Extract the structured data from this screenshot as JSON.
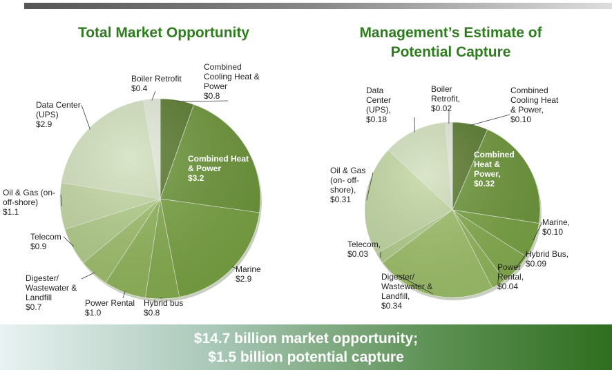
{
  "chart_data": [
    {
      "type": "pie",
      "title": "Total Market Opportunity",
      "categories": [
        "Combined Cooling Heat & Power",
        "Combined Heat & Power",
        "Marine",
        "Hybrid bus",
        "Power Rental",
        "Digester/ Wastewater & Landfill",
        "Telecom",
        "Oil & Gas (on- off-shore)",
        "Data Center (UPS)",
        "Boiler Retrofit"
      ],
      "values": [
        0.8,
        3.2,
        2.9,
        0.8,
        1.0,
        0.7,
        0.9,
        1.1,
        2.9,
        0.4
      ],
      "value_labels": [
        "$0.8",
        "$3.2",
        "$2.9",
        "$0.8",
        "$1.0",
        "$0.7",
        "$0.9",
        "$1.1",
        "$2.9",
        "$0.4"
      ],
      "colors": [
        "#5b7b30",
        "#6e973c",
        "#7aa345",
        "#86ad50",
        "#92b65c",
        "#a0c06d",
        "#b2cd8a",
        "#c2d7a3",
        "#d2e0bd",
        "#e2e9d8"
      ]
    },
    {
      "type": "pie",
      "title": "Management’s Estimate of Potential Capture",
      "categories": [
        "Combined Cooling Heat & Power,",
        "Combined Heat & Power,",
        "Marine,",
        "Hybrid Bus,",
        "Power Rental,",
        "Digester/ Wastewater & Landfill,",
        "Telecom,",
        "Oil & Gas (on- off- shore),",
        "Data Center (UPS),",
        "Boiler Retrofit,"
      ],
      "values": [
        0.1,
        0.32,
        0.1,
        0.09,
        0.04,
        0.34,
        0.03,
        0.31,
        0.18,
        0.02
      ],
      "value_labels": [
        "$0.10",
        "$0.32",
        "$0.10",
        "$0.09",
        "$0.04",
        "$0.34",
        "$0.03",
        "$0.31",
        "$0.18",
        "$0.02"
      ],
      "colors": [
        "#5b7b30",
        "#6e973c",
        "#7aa345",
        "#86ad50",
        "#92b65c",
        "#9fc06a",
        "#b2cd8a",
        "#c2d7a3",
        "#d2e0bd",
        "#e2e9d8"
      ]
    }
  ],
  "banner": [
    "$14.7 billion market opportunity;",
    "$1.5 billion potential capture"
  ]
}
